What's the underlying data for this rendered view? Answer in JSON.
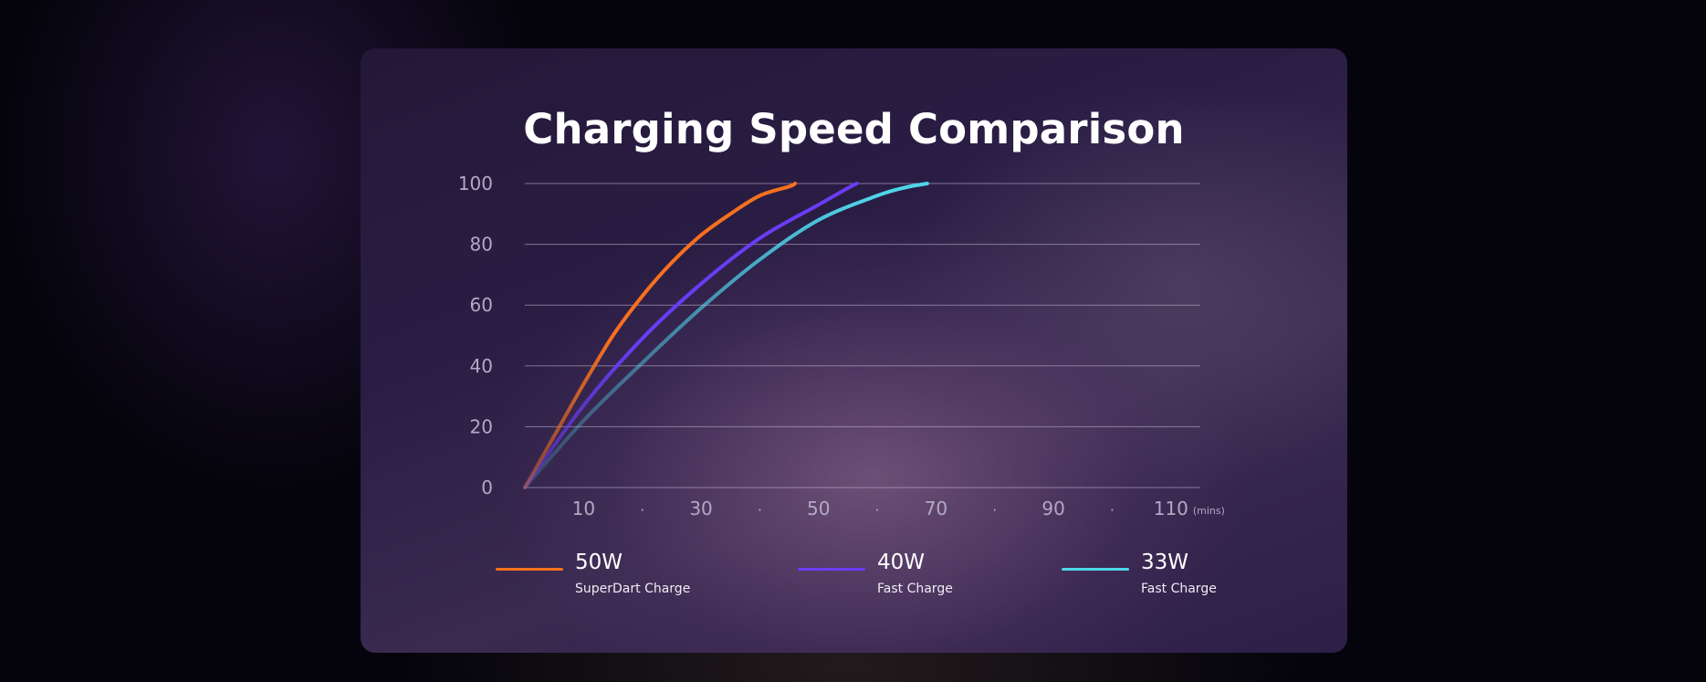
{
  "chart_data": {
    "type": "line",
    "title": "Charging Speed Comparison",
    "xlabel": "",
    "ylabel": "",
    "x_unit": "(mins)",
    "xlim": [
      0,
      115
    ],
    "ylim": [
      0,
      100
    ],
    "y_ticks": [
      0,
      20,
      40,
      60,
      80,
      100
    ],
    "x_ticks": [
      {
        "value": 10,
        "label": "10"
      },
      {
        "value": 20,
        "label": "·"
      },
      {
        "value": 30,
        "label": "30"
      },
      {
        "value": 40,
        "label": "·"
      },
      {
        "value": 50,
        "label": "50"
      },
      {
        "value": 60,
        "label": "·"
      },
      {
        "value": 70,
        "label": "70"
      },
      {
        "value": 80,
        "label": "·"
      },
      {
        "value": 90,
        "label": "90"
      },
      {
        "value": 100,
        "label": "·"
      },
      {
        "value": 110,
        "label": "110"
      }
    ],
    "grid": true,
    "legend_position": "bottom",
    "series": [
      {
        "name": "50W",
        "subtitle": "SuperDart Charge",
        "color": "#f7701f",
        "x": [
          0,
          5,
          10,
          15,
          20,
          25,
          30,
          35,
          40,
          45,
          46
        ],
        "y": [
          0,
          17,
          34,
          50,
          63,
          74,
          83,
          90,
          96,
          99,
          100
        ]
      },
      {
        "name": "40W",
        "subtitle": "Fast Charge",
        "color": "#6a3cf5",
        "x": [
          0,
          10,
          20,
          30,
          40,
          50,
          55,
          56.5
        ],
        "y": [
          0,
          27,
          49,
          67,
          82,
          93,
          98.5,
          100
        ]
      },
      {
        "name": "33W",
        "subtitle": "Fast Charge",
        "color": "#4fd5ea",
        "x": [
          0,
          10,
          20,
          30,
          40,
          50,
          60,
          65,
          68.5
        ],
        "y": [
          0,
          22,
          41,
          59,
          75,
          88,
          96,
          98.8,
          100
        ]
      }
    ]
  }
}
